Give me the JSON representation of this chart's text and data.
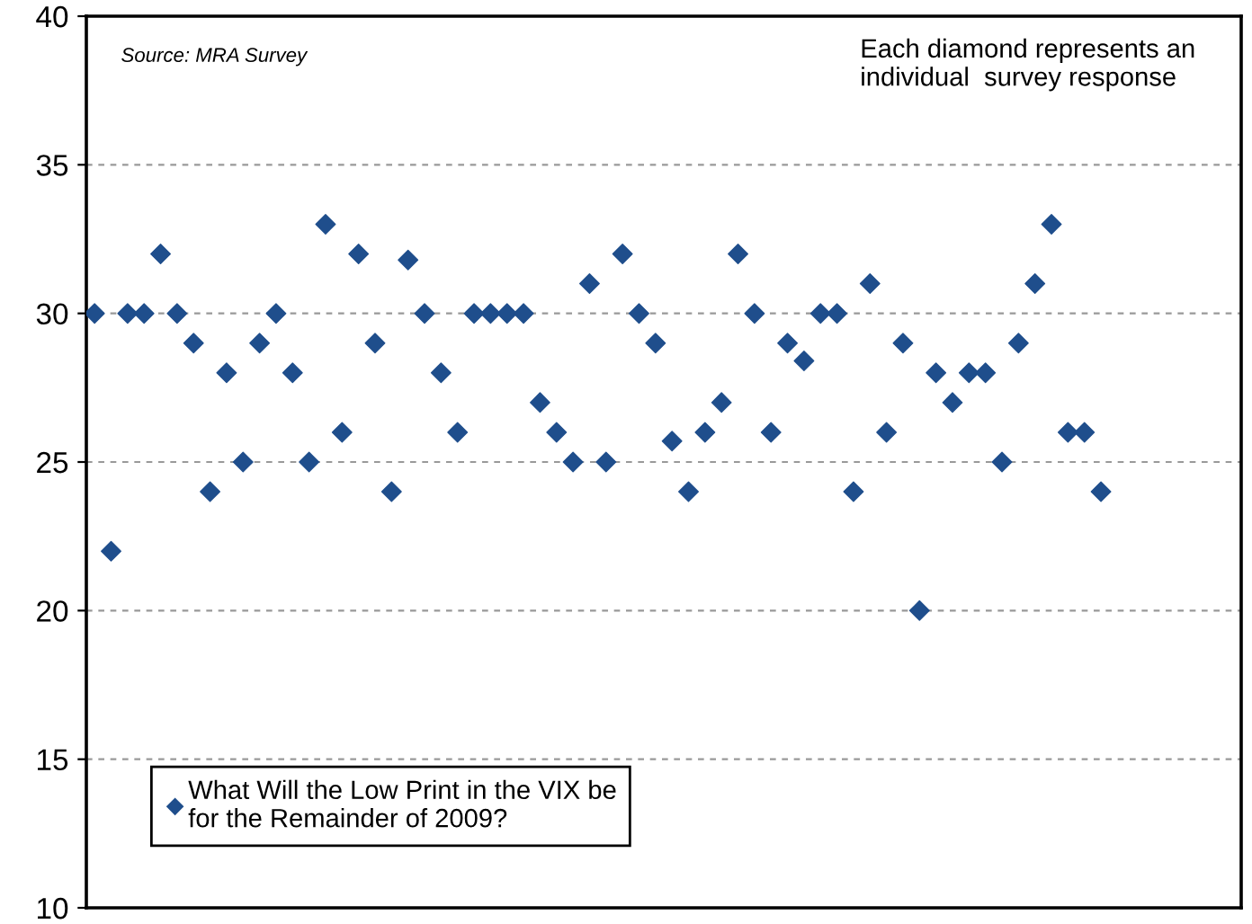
{
  "chart_data": {
    "type": "scatter",
    "categories": [
      null,
      null,
      null,
      null,
      null,
      null,
      null,
      null,
      null,
      null,
      null,
      null,
      null,
      null,
      null,
      null,
      null,
      null,
      null,
      null,
      null,
      null,
      null,
      null,
      null,
      null,
      null,
      null,
      null,
      null,
      null,
      null,
      null,
      null,
      null,
      null,
      null,
      null,
      null,
      null,
      null,
      null,
      null,
      null,
      null,
      null,
      null,
      null,
      null,
      null,
      null,
      null,
      null,
      null,
      null,
      null,
      null,
      null,
      null,
      null,
      null,
      null,
      null,
      null,
      null,
      null,
      null,
      null,
      null,
      null
    ],
    "series": [
      {
        "name": "What Will the Low Print in the VIX be\nfor the Remainder of 2009?",
        "color": "#1f4e8c",
        "values": [
          30,
          22,
          30,
          30,
          32,
          30,
          29,
          24,
          28,
          25,
          29,
          30,
          28,
          25,
          33,
          26,
          32,
          29,
          24,
          31.8,
          30,
          28,
          26,
          30,
          30,
          30,
          30,
          27,
          26,
          25,
          31,
          25,
          32,
          30,
          29,
          25.7,
          24,
          26,
          27,
          32,
          30,
          26,
          29,
          28.4,
          30,
          30,
          24,
          31,
          26,
          29,
          20,
          28,
          27,
          28,
          28,
          25,
          29,
          31,
          33,
          26,
          26,
          24,
          null,
          null,
          null,
          null,
          null,
          null,
          null,
          null
        ]
      }
    ],
    "ylim": [
      10,
      40
    ],
    "yticks": [
      10,
      15,
      20,
      25,
      30,
      35,
      40
    ],
    "grid": "y",
    "marker": "diamond",
    "legend": "bottom left",
    "tick_labels": "y",
    "annotations": [
      "Source: MRA Survey",
      "Each diamond represents an\nindividual  survey response"
    ]
  }
}
